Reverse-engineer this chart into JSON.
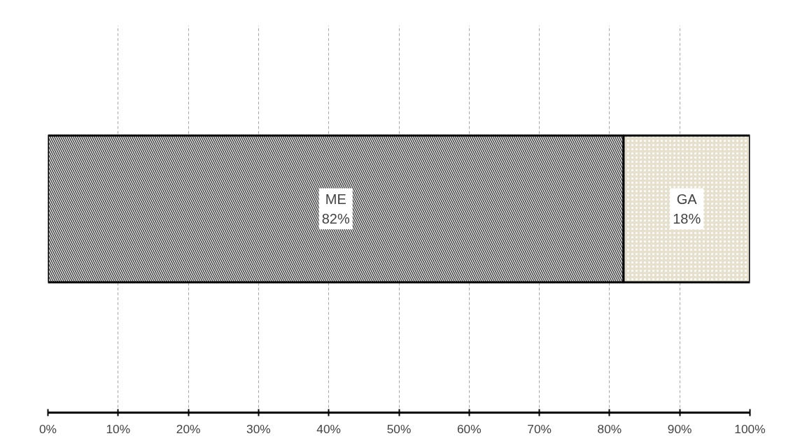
{
  "chart_data": {
    "type": "bar",
    "orientation": "horizontal",
    "stacked": true,
    "categories": [
      null
    ],
    "series": [
      {
        "name": "ME",
        "color": "#404040",
        "values": [
          82
        ],
        "value_labels": [
          "82%"
        ]
      },
      {
        "name": "GA",
        "color": "#e6e1cf",
        "values": [
          18
        ],
        "value_labels": [
          "18%"
        ]
      }
    ],
    "xlim": [
      0,
      100
    ],
    "xticks": [
      {
        "value": 0,
        "label": "0%"
      },
      {
        "value": 10,
        "label": "10%"
      },
      {
        "value": 20,
        "label": "20%"
      },
      {
        "value": 30,
        "label": "30%"
      },
      {
        "value": 40,
        "label": "40%"
      },
      {
        "value": 50,
        "label": "50%"
      },
      {
        "value": 60,
        "label": "60%"
      },
      {
        "value": 70,
        "label": "70%"
      },
      {
        "value": 80,
        "label": "80%"
      },
      {
        "value": 90,
        "label": "90%"
      },
      {
        "value": 100,
        "label": "100%"
      }
    ],
    "grid": "x",
    "tick_labels": "x"
  }
}
